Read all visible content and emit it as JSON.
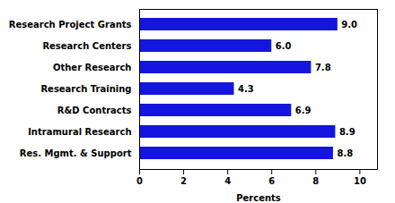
{
  "chart_data": {
    "type": "bar",
    "orientation": "horizontal",
    "categories": [
      "Research Project Grants",
      "Research Centers",
      "Other Research",
      "Research Training",
      "R&D Contracts",
      "Intramural Research",
      "Res. Mgmt. & Support"
    ],
    "values": [
      9.0,
      6.0,
      7.8,
      4.3,
      6.9,
      8.9,
      8.8
    ],
    "value_labels": [
      "9.0",
      "6.0",
      "7.8",
      "4.3",
      "6.9",
      "8.9",
      "8.8"
    ],
    "data_labels": true,
    "color": "#1515e0",
    "xlabel": "Percents",
    "xlim": [
      0,
      10.8
    ],
    "xticks": [
      0,
      2,
      4,
      6,
      8,
      10
    ],
    "grid": false
  }
}
